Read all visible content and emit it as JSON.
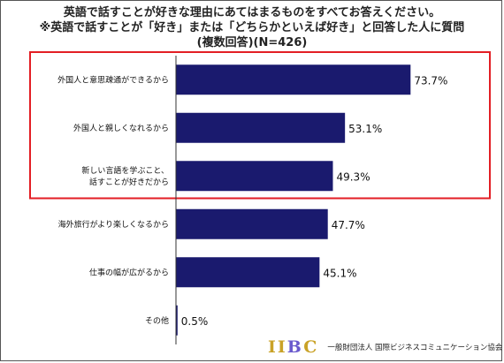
{
  "title": {
    "line1": "英語で話すことが好きな理由にあてはまるものをすべてお答えください。",
    "line2": "※英語で話すことが「好き」または「どちらかといえば好き」と回答した人に質問",
    "line3": "(複数回答)(N=426)"
  },
  "chart_data": {
    "type": "bar",
    "orientation": "horizontal",
    "categories": [
      [
        "外国人と意思疎通ができるから"
      ],
      [
        "外国人と親しくなれるから"
      ],
      [
        "新しい言語を学ぶこと、",
        "話すことが好きだから"
      ],
      [
        "海外旅行がより楽しくなるから"
      ],
      [
        "仕事の幅が広がるから"
      ],
      [
        "その他"
      ]
    ],
    "values": [
      73.7,
      53.1,
      49.3,
      47.7,
      45.1,
      0.5
    ],
    "value_labels": [
      "73.7%",
      "53.1%",
      "49.3%",
      "47.7%",
      "45.1%",
      "0.5%"
    ],
    "xlim": [
      0,
      100
    ],
    "bar_color": "#1a1a6e",
    "highlight": {
      "categories": [
        0,
        1,
        2
      ],
      "color": "#e31e24"
    }
  },
  "footer": {
    "logo": {
      "i1": "I",
      "i2": "I",
      "b": "B",
      "c": "C"
    },
    "organization": "一般財団法人 国際ビジネスコミュニケーション協会"
  }
}
